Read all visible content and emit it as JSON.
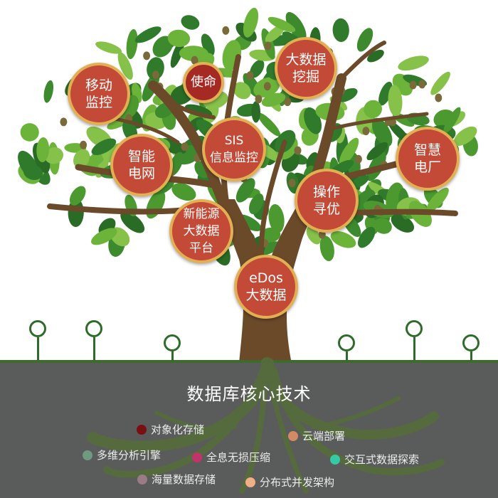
{
  "diagram": {
    "title": "数据库核心技术",
    "nodes": [
      {
        "id": "mobile",
        "label": "移动\n监控"
      },
      {
        "id": "mission",
        "label": "使命"
      },
      {
        "id": "bigdata-mining",
        "label": "大数据\n挖掘"
      },
      {
        "id": "smart-grid",
        "label": "智能\n电网"
      },
      {
        "id": "sis",
        "label": "SIS\n信息监控"
      },
      {
        "id": "smart-plant",
        "label": "智慧\n电厂"
      },
      {
        "id": "operation",
        "label": "操作\n寻优"
      },
      {
        "id": "new-energy",
        "label": "新能源\n大数据\n平台"
      },
      {
        "id": "edos",
        "label": "eDos\n大数据"
      }
    ],
    "technologies": [
      {
        "label": "对象化存储",
        "color": "#7a0f12"
      },
      {
        "label": "云端部署",
        "color": "#d38b63"
      },
      {
        "label": "多维分析引擎",
        "color": "#6e9a82"
      },
      {
        "label": "全息无损压缩",
        "color": "#c2336b"
      },
      {
        "label": "交互式数据探索",
        "color": "#35c9a4"
      },
      {
        "label": "海量数据存储",
        "color": "#9a7b86"
      },
      {
        "label": "分布式并发架构",
        "color": "#f2ae84"
      }
    ]
  }
}
